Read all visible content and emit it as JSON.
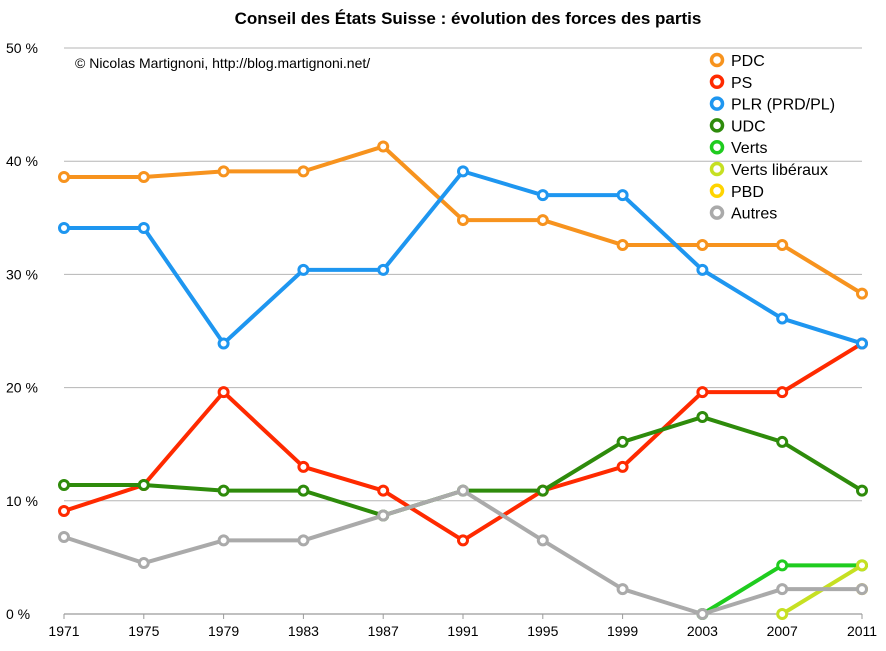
{
  "chart_data": {
    "type": "line",
    "title": "Conseil des États Suisse : évolution des forces des partis",
    "credit": "© Nicolas Martignoni, http://blog.martignoni.net/",
    "x": [
      "1971",
      "1975",
      "1979",
      "1983",
      "1987",
      "1991",
      "1995",
      "1999",
      "2003",
      "2007",
      "2011"
    ],
    "y_ticks": [
      "0 %",
      "10 %",
      "20 %",
      "30 %",
      "40 %",
      "50 %"
    ],
    "ylim": [
      0,
      50
    ],
    "grid": true,
    "legend_position": "top-right",
    "series": [
      {
        "name": "PDC",
        "color": "#f7931e",
        "values": [
          38.6,
          38.6,
          39.1,
          39.1,
          41.3,
          34.8,
          34.8,
          32.6,
          32.6,
          32.6,
          28.3
        ]
      },
      {
        "name": "PS",
        "color": "#ff2a00",
        "values": [
          9.1,
          11.4,
          19.6,
          13.0,
          10.9,
          6.5,
          10.9,
          13.0,
          19.6,
          19.6,
          23.9
        ]
      },
      {
        "name": "PLR (PRD/PL)",
        "color": "#1e96f0",
        "values": [
          34.1,
          34.1,
          23.9,
          30.4,
          30.4,
          39.1,
          37.0,
          37.0,
          30.4,
          26.1,
          23.9
        ]
      },
      {
        "name": "UDC",
        "color": "#2e8b0b",
        "values": [
          11.4,
          11.4,
          10.9,
          10.9,
          8.7,
          10.9,
          10.9,
          15.2,
          17.4,
          15.2,
          10.9
        ]
      },
      {
        "name": "Verts",
        "color": "#1fcc1f",
        "values": [
          null,
          null,
          null,
          null,
          null,
          null,
          null,
          null,
          0.0,
          4.3,
          4.3
        ]
      },
      {
        "name": "Verts libéraux",
        "color": "#c6e022",
        "values": [
          null,
          null,
          null,
          null,
          null,
          null,
          null,
          null,
          null,
          0.0,
          4.3
        ]
      },
      {
        "name": "PBD",
        "color": "#ffd400",
        "values": [
          null,
          null,
          null,
          null,
          null,
          null,
          null,
          null,
          null,
          null,
          2.2
        ]
      },
      {
        "name": "Autres",
        "color": "#aaaaaa",
        "values": [
          6.8,
          4.5,
          6.5,
          6.5,
          8.7,
          10.9,
          6.5,
          2.2,
          0.0,
          2.2,
          2.2
        ]
      }
    ]
  }
}
